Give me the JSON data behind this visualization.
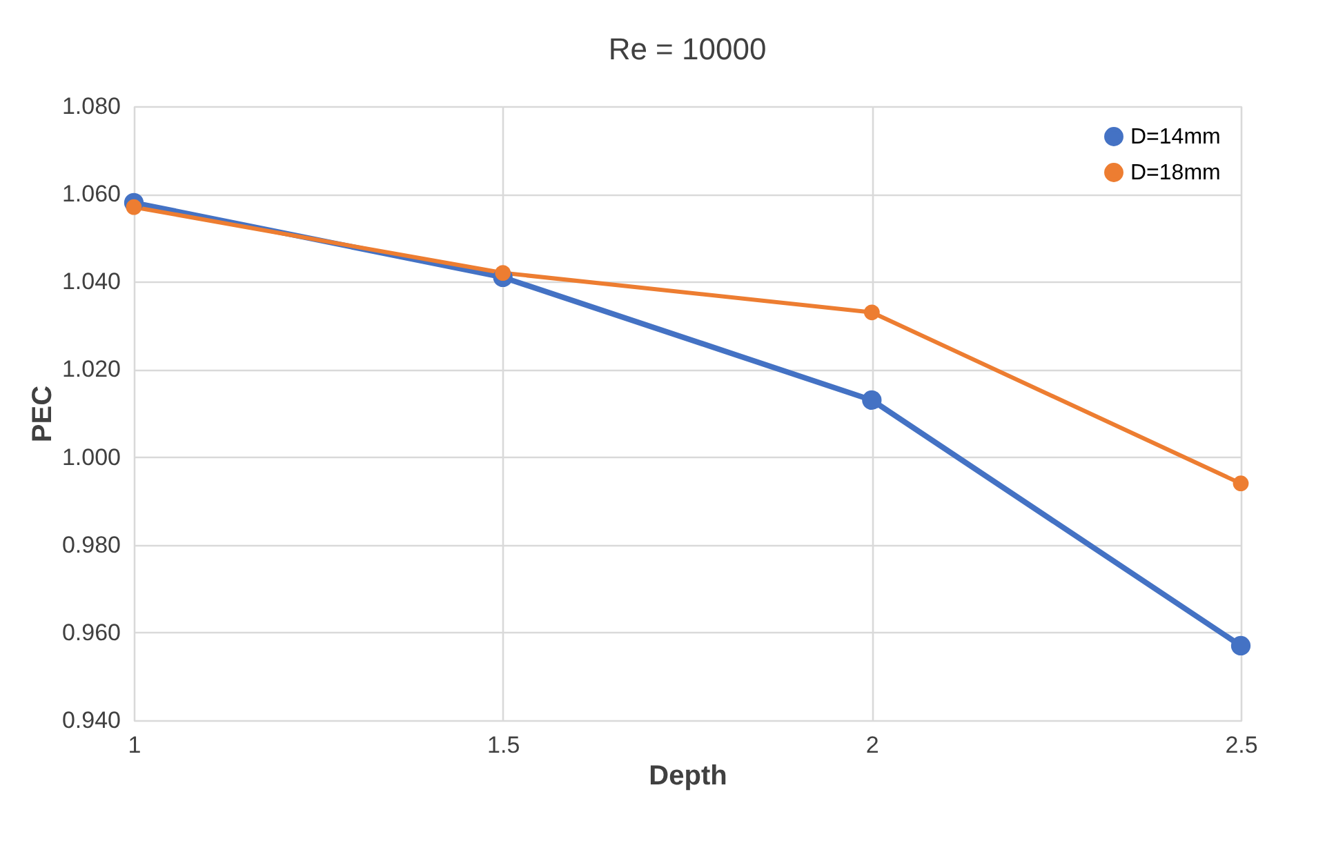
{
  "chart_data": {
    "type": "line",
    "title": "Re = 10000",
    "xlabel": "Depth",
    "ylabel": "PEC",
    "x": [
      1,
      1.5,
      2,
      2.5
    ],
    "series": [
      {
        "name": "D=14mm",
        "color": "#4472c4",
        "values": [
          1.058,
          1.041,
          1.013,
          0.957
        ]
      },
      {
        "name": "D=18mm",
        "color": "#ed7d31",
        "values": [
          1.057,
          1.042,
          1.033,
          0.994
        ]
      }
    ],
    "xlim": [
      1,
      2.5
    ],
    "xticks": [
      1,
      1.5,
      2,
      2.5
    ],
    "ylim": [
      0.94,
      1.08
    ],
    "yticks": [
      {
        "value": 0.94,
        "label": "0.940"
      },
      {
        "value": 0.96,
        "label": "0.960"
      },
      {
        "value": 0.98,
        "label": "0.980"
      },
      {
        "value": 1.0,
        "label": "1.000"
      },
      {
        "value": 1.02,
        "label": "1.020"
      },
      {
        "value": 1.04,
        "label": "1.040"
      },
      {
        "value": 1.06,
        "label": "1.060"
      },
      {
        "value": 1.08,
        "label": "1.080"
      }
    ],
    "grid": true,
    "legend": "top right",
    "marker": "circle",
    "line_style": "solid"
  }
}
